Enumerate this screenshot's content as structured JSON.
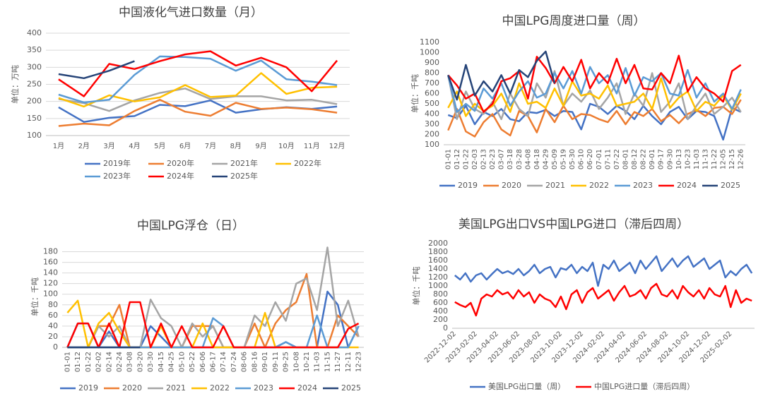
{
  "chart_data": [
    {
      "type": "line",
      "title": "中国液化气进口数量（月）",
      "y_label": "单位：万吨",
      "categories": [
        "1月",
        "2月",
        "3月",
        "4月",
        "5月",
        "6月",
        "7月",
        "8月",
        "9月",
        "10月",
        "11月",
        "12月"
      ],
      "ylim": [
        100,
        400
      ],
      "yticks": [
        100,
        150,
        200,
        250,
        300,
        350,
        400
      ],
      "grid": true,
      "series": [
        {
          "name": "2019年",
          "color": "#4472c4",
          "values": [
            183,
            140,
            152,
            157,
            190,
            186,
            203,
            167,
            177,
            183,
            178,
            185
          ]
        },
        {
          "name": "2020年",
          "color": "#ed7d31",
          "values": [
            128,
            135,
            130,
            172,
            205,
            170,
            158,
            196,
            178,
            182,
            177,
            167
          ]
        },
        {
          "name": "2021年",
          "color": "#a5a5a5",
          "values": [
            207,
            195,
            172,
            203,
            225,
            238,
            207,
            215,
            215,
            203,
            205,
            192
          ]
        },
        {
          "name": "2022年",
          "color": "#ffc000",
          "values": [
            210,
            185,
            218,
            200,
            212,
            248,
            213,
            217,
            283,
            222,
            240,
            243
          ]
        },
        {
          "name": "2023年",
          "color": "#5b9bd5",
          "values": [
            220,
            197,
            205,
            278,
            332,
            330,
            325,
            290,
            320,
            265,
            258,
            248
          ]
        },
        {
          "name": "2024年",
          "color": "#ff0000",
          "values": [
            265,
            215,
            310,
            295,
            318,
            338,
            347,
            305,
            328,
            300,
            230,
            320
          ]
        },
        {
          "name": "2025年",
          "color": "#264478",
          "values": [
            280,
            268,
            290,
            318,
            null,
            null,
            null,
            null,
            null,
            null,
            null,
            null
          ]
        }
      ]
    },
    {
      "type": "line",
      "title": "中国LPG周度进口量（周）",
      "y_label": "单位：千吨",
      "categories": [
        "01-01",
        "01-12",
        "01-22",
        "02-03",
        "02-13",
        "02-23",
        "03-07",
        "03-18",
        "03-28",
        "04-08",
        "04-18",
        "04-29",
        "05-09",
        "05-19",
        "05-30",
        "06-10",
        "06-20",
        "07-01",
        "07-11",
        "07-22",
        "08-01",
        "08-12",
        "08-22",
        "09-01",
        "09-17",
        "09-30",
        "10-13",
        "10-23",
        "11-03",
        "11-13",
        "11-22",
        "12-05",
        "12-15",
        "12-26"
      ],
      "ylim": [
        100,
        1100
      ],
      "yticks": [
        100,
        200,
        300,
        400,
        500,
        600,
        700,
        800,
        900,
        1000,
        1100
      ],
      "grid": false,
      "series": [
        {
          "name": "2019",
          "color": "#4472c4",
          "values": [
            390,
            360,
            480,
            300,
            420,
            380,
            450,
            350,
            330,
            420,
            410,
            440,
            380,
            430,
            420,
            250,
            500,
            470,
            400,
            480,
            430,
            350,
            480,
            380,
            300,
            420,
            470,
            350,
            430,
            420,
            380,
            150,
            460,
            420
          ]
        },
        {
          "name": "2020",
          "color": "#ed7d31",
          "values": [
            240,
            450,
            230,
            180,
            320,
            400,
            250,
            190,
            430,
            380,
            220,
            450,
            320,
            480,
            350,
            400,
            390,
            350,
            320,
            430,
            300,
            420,
            380,
            450,
            330,
            390,
            310,
            400,
            440,
            380,
            460,
            470,
            400,
            540
          ]
        },
        {
          "name": "2021",
          "color": "#a5a5a5",
          "values": [
            780,
            350,
            620,
            450,
            400,
            520,
            350,
            600,
            450,
            380,
            700,
            560,
            820,
            480,
            600,
            520,
            630,
            450,
            560,
            700,
            400,
            600,
            480,
            800,
            420,
            520,
            700,
            350,
            480,
            600,
            400,
            470,
            560,
            420
          ]
        },
        {
          "name": "2022",
          "color": "#ffc000",
          "values": [
            460,
            620,
            380,
            500,
            430,
            480,
            600,
            420,
            700,
            500,
            520,
            460,
            650,
            480,
            720,
            580,
            600,
            550,
            680,
            480,
            500,
            520,
            600,
            450,
            750,
            460,
            560,
            620,
            430,
            520,
            480,
            580,
            440,
            600
          ]
        },
        {
          "name": "2023",
          "color": "#5b9bd5",
          "values": [
            780,
            420,
            500,
            430,
            650,
            550,
            700,
            480,
            620,
            720,
            560,
            600,
            800,
            650,
            820,
            600,
            860,
            700,
            780,
            600,
            850,
            580,
            760,
            720,
            800,
            600,
            580,
            830,
            560,
            700,
            520,
            600,
            450,
            640
          ]
        },
        {
          "name": "2024",
          "color": "#ff0000",
          "values": [
            780,
            680,
            550,
            600,
            420,
            500,
            720,
            750,
            820,
            550,
            960,
            850,
            700,
            860,
            720,
            930,
            650,
            800,
            700,
            940,
            700,
            880,
            650,
            640,
            800,
            700,
            970,
            620,
            760,
            650,
            600,
            520,
            820,
            880
          ]
        },
        {
          "name": "2025",
          "color": "#264478",
          "values": [
            780,
            540,
            880,
            580,
            720,
            620,
            780,
            600,
            830,
            760,
            920,
            1010,
            700,
            null,
            null,
            null,
            null,
            null,
            null,
            null,
            null,
            null,
            null,
            null,
            null,
            null,
            null,
            null,
            null,
            null,
            null,
            null,
            null,
            null
          ]
        }
      ]
    },
    {
      "type": "line",
      "title": "中国LPG浮仓（日）",
      "y_label": "单位：千吨",
      "categories": [
        "01-01",
        "01-12",
        "01-22",
        "02-02",
        "02-14",
        "02-24",
        "03-08",
        "03-20",
        "03-30",
        "04-15",
        "04-25",
        "05-10",
        "05-22",
        "06-06",
        "06-17",
        "07-14",
        "07-24",
        "08-06",
        "08-16",
        "09-01",
        "09-11",
        "09-25",
        "10-08",
        "10-21",
        "11-03",
        "11-15",
        "11-27",
        "12-11",
        "12-23"
      ],
      "ylim": [
        0,
        190
      ],
      "yticks": [
        0,
        20,
        40,
        60,
        80,
        100,
        120,
        140,
        160,
        180
      ],
      "grid": true,
      "series": [
        {
          "name": "2019",
          "color": "#4472c4",
          "values": [
            0,
            45,
            45,
            0,
            30,
            0,
            0,
            0,
            40,
            20,
            0,
            0,
            0,
            0,
            0,
            0,
            0,
            0,
            0,
            0,
            0,
            10,
            0,
            0,
            0,
            105,
            80,
            0,
            40
          ]
        },
        {
          "name": "2020",
          "color": "#ed7d31",
          "values": [
            0,
            0,
            0,
            40,
            40,
            80,
            0,
            0,
            0,
            0,
            0,
            0,
            40,
            40,
            40,
            0,
            0,
            0,
            45,
            0,
            45,
            70,
            85,
            138,
            0,
            0,
            60,
            40,
            20
          ]
        },
        {
          "name": "2021",
          "color": "#a5a5a5",
          "values": [
            0,
            0,
            0,
            40,
            20,
            40,
            0,
            0,
            90,
            55,
            40,
            0,
            45,
            20,
            40,
            0,
            0,
            0,
            60,
            40,
            85,
            50,
            120,
            130,
            70,
            188,
            40,
            88,
            20
          ]
        },
        {
          "name": "2022",
          "color": "#ffc000",
          "values": [
            65,
            88,
            0,
            45,
            65,
            30,
            0,
            0,
            0,
            40,
            0,
            0,
            0,
            45,
            0,
            0,
            0,
            0,
            0,
            65,
            0,
            0,
            0,
            0,
            0,
            0,
            0,
            0,
            0
          ]
        },
        {
          "name": "2023",
          "color": "#5b9bd5",
          "values": [
            0,
            0,
            0,
            0,
            0,
            0,
            0,
            0,
            0,
            0,
            0,
            0,
            0,
            0,
            55,
            40,
            0,
            0,
            0,
            0,
            0,
            10,
            0,
            0,
            60,
            0,
            0,
            0,
            40
          ]
        },
        {
          "name": "2024",
          "color": "#ff0000",
          "values": [
            0,
            45,
            45,
            0,
            45,
            0,
            85,
            85,
            0,
            45,
            0,
            40,
            0,
            0,
            0,
            40,
            0,
            0,
            0,
            0,
            0,
            0,
            0,
            0,
            0,
            0,
            0,
            35,
            45
          ]
        },
        {
          "name": "2025",
          "color": "#264478",
          "values": [
            0,
            0,
            0,
            0,
            0,
            0,
            0,
            0,
            null,
            null,
            null,
            null,
            null,
            null,
            null,
            null,
            null,
            null,
            null,
            null,
            null,
            null,
            null,
            null,
            null,
            null,
            null,
            null,
            null
          ]
        }
      ]
    },
    {
      "type": "line",
      "title": "美国LPG出口VS中国LPG进口（滞后四周）",
      "y_label": "单位：千吨",
      "categories": [
        "2022-12-02",
        null,
        null,
        null,
        "2023-02-02",
        null,
        null,
        null,
        "2023-04-02",
        null,
        null,
        null,
        "2023-06-02",
        null,
        null,
        null,
        "2023-08-02",
        null,
        null,
        null,
        "2023-10-02",
        null,
        null,
        null,
        "2023-12-02",
        null,
        null,
        null,
        "2024-02-02",
        null,
        null,
        null,
        "2024-04-02",
        null,
        null,
        null,
        "2024-06-02",
        null,
        null,
        null,
        "2024-08-02",
        null,
        null,
        null,
        "2024-10-02",
        null,
        null,
        null,
        "2024-12-02",
        null,
        null,
        null,
        "2025-02-02",
        null,
        null,
        null,
        null
      ],
      "ylim": [
        0,
        2000
      ],
      "yticks": [
        0,
        200,
        400,
        600,
        800,
        1000,
        1200,
        1400,
        1600,
        1800,
        2000
      ],
      "grid": false,
      "series": [
        {
          "name": "美国LPG出口量（周）",
          "color": "#4472c4",
          "values": [
            1250,
            1150,
            1300,
            1100,
            1250,
            1300,
            1150,
            1280,
            1400,
            1300,
            1350,
            1280,
            1400,
            1250,
            1350,
            1500,
            1300,
            1400,
            1450,
            1200,
            1420,
            1380,
            1500,
            1300,
            1450,
            1350,
            1550,
            1000,
            1500,
            1400,
            1600,
            1350,
            1450,
            1550,
            1300,
            1600,
            1400,
            1550,
            1700,
            1350,
            1500,
            1650,
            1450,
            1600,
            1700,
            1450,
            1550,
            1650,
            1400,
            1500,
            1600,
            1200,
            1350,
            1250,
            1400,
            1500,
            1300
          ]
        },
        {
          "name": "中国LPG进口量（滞后四周）",
          "color": "#ff0000",
          "values": [
            620,
            550,
            500,
            600,
            300,
            700,
            800,
            750,
            900,
            800,
            850,
            700,
            900,
            750,
            850,
            600,
            800,
            700,
            650,
            500,
            750,
            450,
            800,
            900,
            600,
            850,
            950,
            700,
            800,
            900,
            650,
            850,
            1000,
            750,
            800,
            900,
            700,
            950,
            1050,
            800,
            750,
            900,
            700,
            1000,
            850,
            750,
            900,
            700,
            950,
            800,
            750,
            1000,
            500,
            900,
            600,
            700,
            650
          ]
        }
      ]
    }
  ]
}
